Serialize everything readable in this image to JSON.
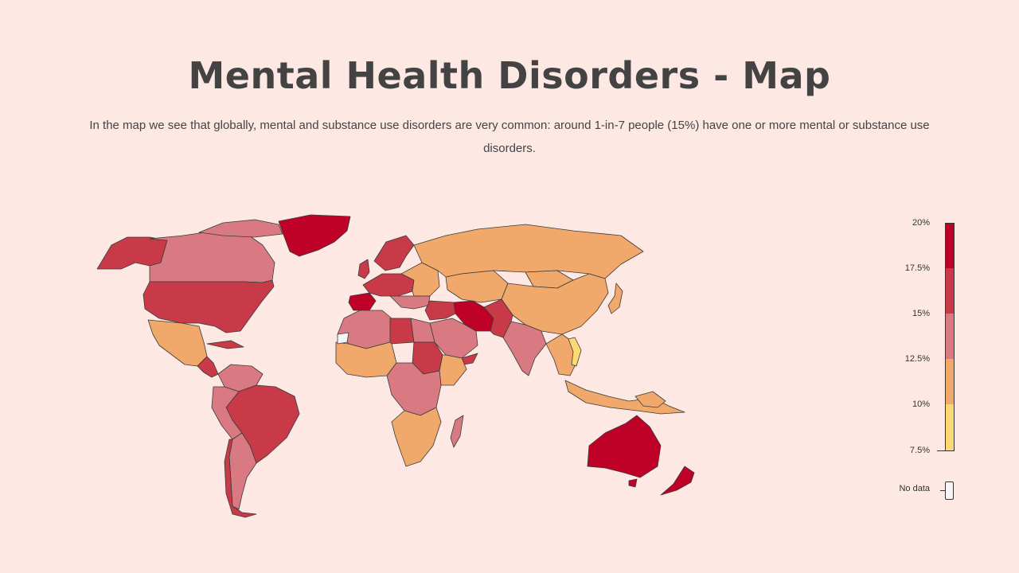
{
  "title": "Mental Health Disorders - Map",
  "subtitle": "In the map we see that globally, mental and substance use disorders are very common: around 1-in-7 people (15%) have one or more mental or substance use disorders.",
  "colors": {
    "background": "#fde8e4",
    "bin_7_5_10": "#fdd874",
    "bin_10_12_5": "#f0a96b",
    "bin_12_5_15": "#d97a82",
    "bin_15_17_5": "#c93a48",
    "bin_17_5_20": "#bf0027",
    "no_data": "#f5f5f5",
    "border": "#3a3a3a"
  },
  "legend": {
    "ticks": [
      "20%",
      "17.5%",
      "15%",
      "12.5%",
      "10%",
      "7.5%"
    ],
    "no_data_label": "No data"
  }
}
